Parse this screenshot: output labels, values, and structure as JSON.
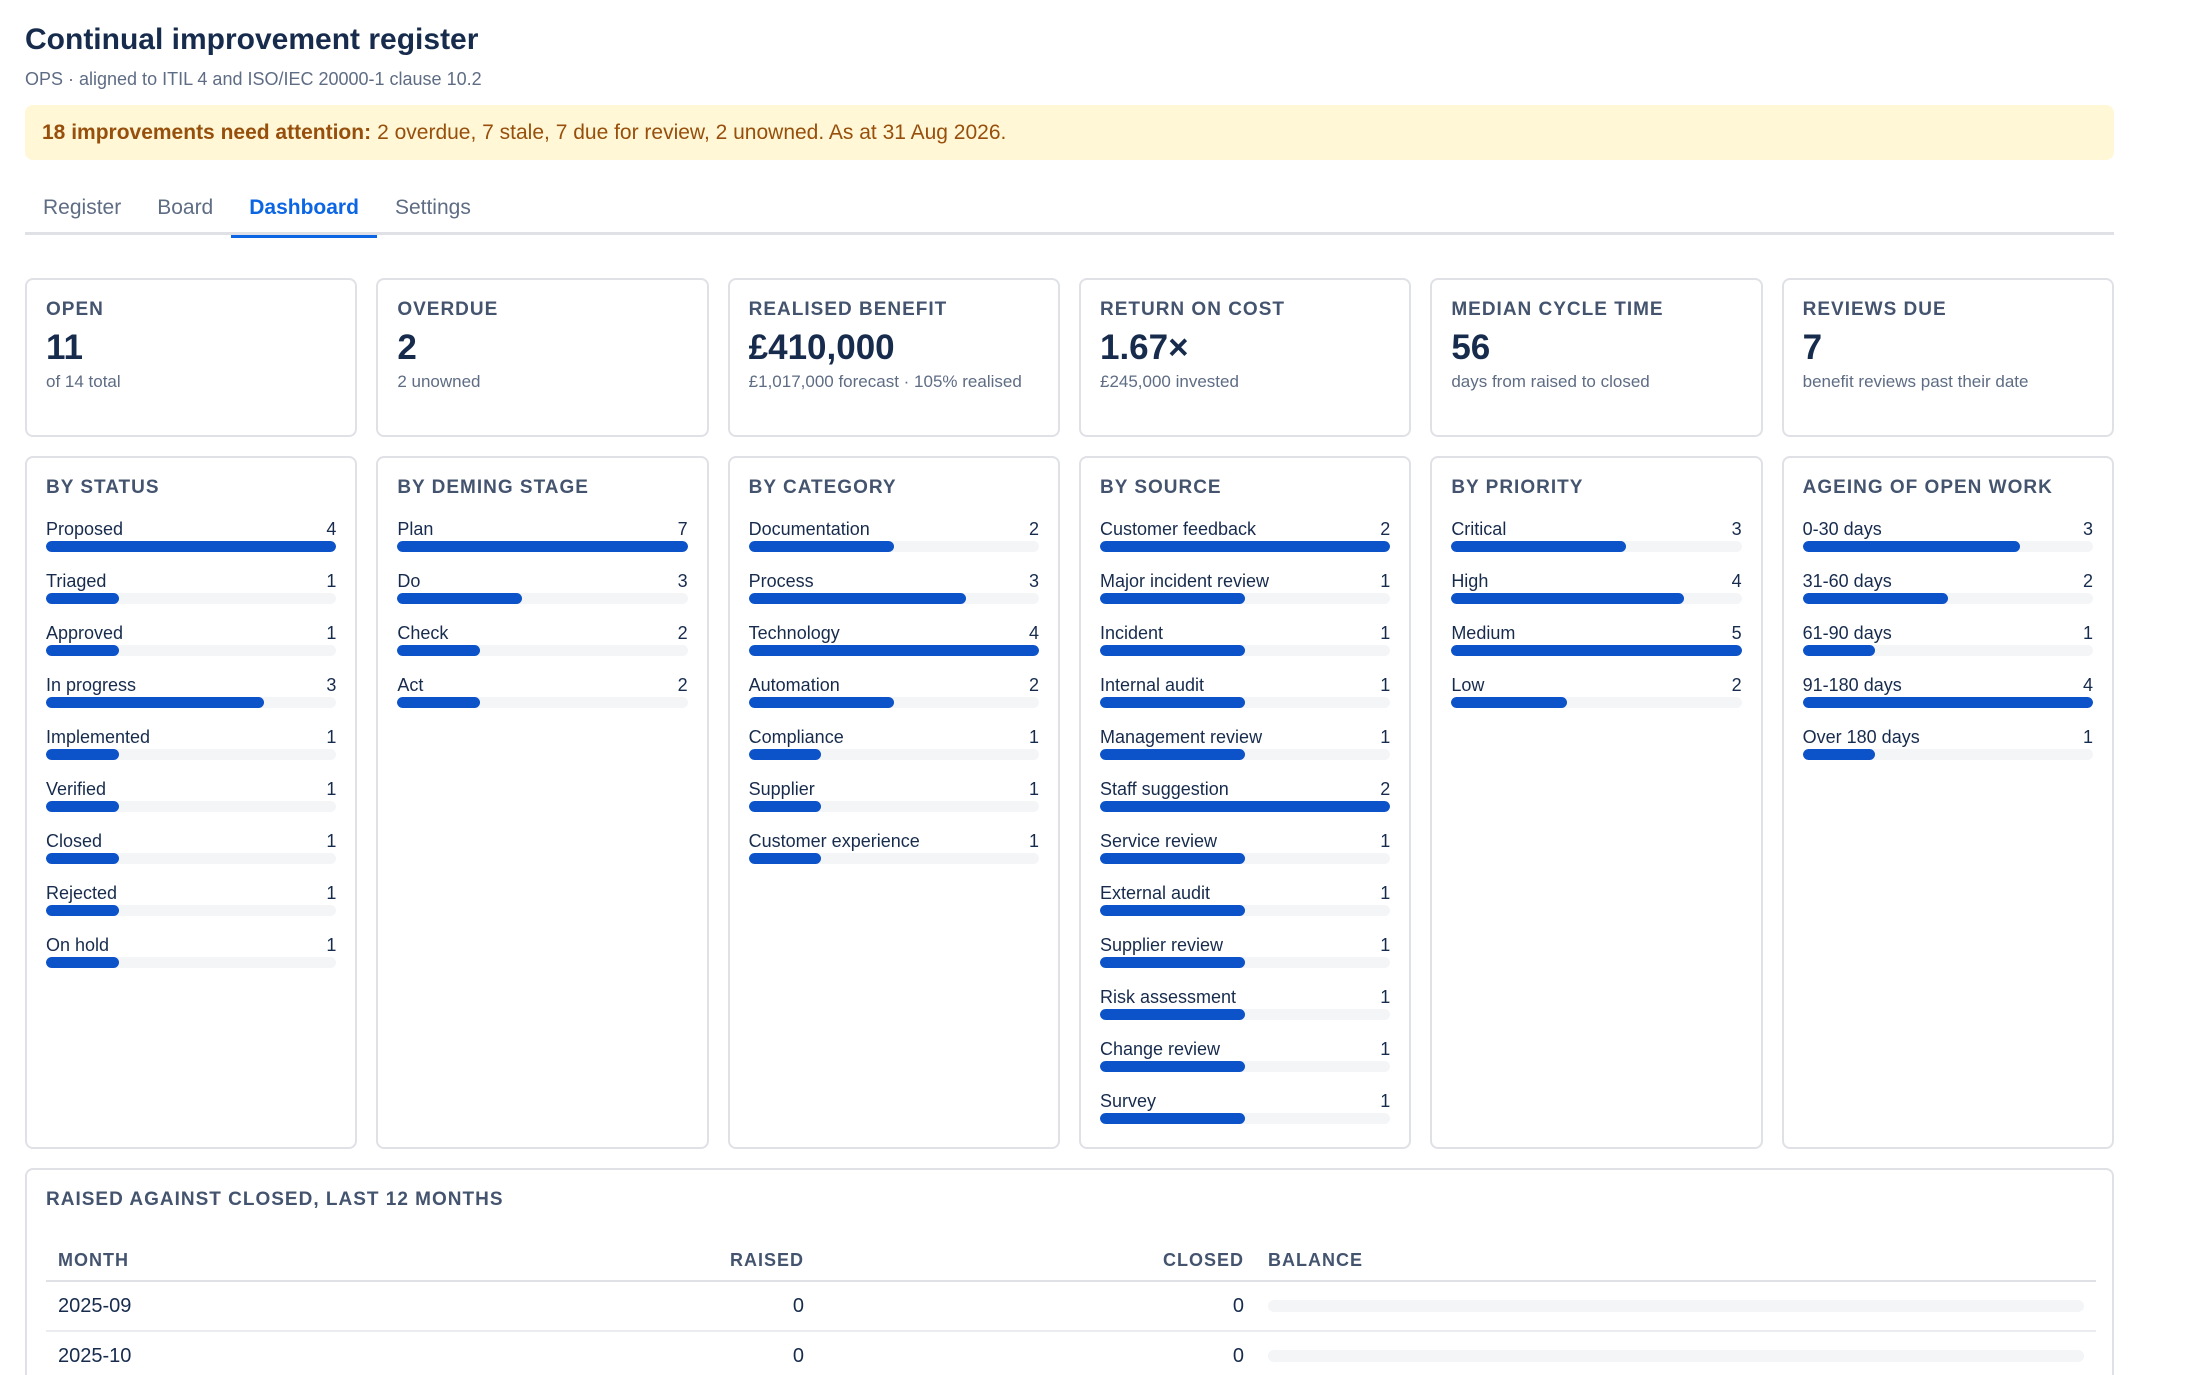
{
  "header": {
    "title": "Continual improvement register",
    "subtitle": "OPS · aligned to ITIL 4 and ISO/IEC 20000-1 clause 10.2"
  },
  "alert": {
    "strong": "18 improvements need attention:",
    "text": "2 overdue, 7 stale, 7 due for review, 2 unowned. As at 31 Aug 2026."
  },
  "tabs": [
    {
      "label": "Register",
      "active": false
    },
    {
      "label": "Board",
      "active": false
    },
    {
      "label": "Dashboard",
      "active": true
    },
    {
      "label": "Settings",
      "active": false
    }
  ],
  "kpis": [
    {
      "label": "OPEN",
      "value": "11",
      "sub": "of 14 total"
    },
    {
      "label": "OVERDUE",
      "value": "2",
      "sub": "2 unowned"
    },
    {
      "label": "REALISED BENEFIT",
      "value": "£410,000",
      "sub": "£1,017,000 forecast · 105% realised"
    },
    {
      "label": "RETURN ON COST",
      "value": "1.67×",
      "sub": "£245,000 invested"
    },
    {
      "label": "MEDIAN CYCLE TIME",
      "value": "56",
      "sub": "days from raised to closed"
    },
    {
      "label": "REVIEWS DUE",
      "value": "7",
      "sub": "benefit reviews past their date"
    }
  ],
  "panels": [
    {
      "title": "BY STATUS",
      "max": 4,
      "items": [
        {
          "label": "Proposed",
          "value": 4
        },
        {
          "label": "Triaged",
          "value": 1
        },
        {
          "label": "Approved",
          "value": 1
        },
        {
          "label": "In progress",
          "value": 3
        },
        {
          "label": "Implemented",
          "value": 1
        },
        {
          "label": "Verified",
          "value": 1
        },
        {
          "label": "Closed",
          "value": 1
        },
        {
          "label": "Rejected",
          "value": 1
        },
        {
          "label": "On hold",
          "value": 1
        }
      ]
    },
    {
      "title": "BY DEMING STAGE",
      "max": 7,
      "items": [
        {
          "label": "Plan",
          "value": 7
        },
        {
          "label": "Do",
          "value": 3
        },
        {
          "label": "Check",
          "value": 2
        },
        {
          "label": "Act",
          "value": 2
        }
      ]
    },
    {
      "title": "BY CATEGORY",
      "max": 4,
      "items": [
        {
          "label": "Documentation",
          "value": 2
        },
        {
          "label": "Process",
          "value": 3
        },
        {
          "label": "Technology",
          "value": 4
        },
        {
          "label": "Automation",
          "value": 2
        },
        {
          "label": "Compliance",
          "value": 1
        },
        {
          "label": "Supplier",
          "value": 1
        },
        {
          "label": "Customer experience",
          "value": 1
        }
      ]
    },
    {
      "title": "BY SOURCE",
      "max": 2,
      "items": [
        {
          "label": "Customer feedback",
          "value": 2
        },
        {
          "label": "Major incident review",
          "value": 1
        },
        {
          "label": "Incident",
          "value": 1
        },
        {
          "label": "Internal audit",
          "value": 1
        },
        {
          "label": "Management review",
          "value": 1
        },
        {
          "label": "Staff suggestion",
          "value": 2
        },
        {
          "label": "Service review",
          "value": 1
        },
        {
          "label": "External audit",
          "value": 1
        },
        {
          "label": "Supplier review",
          "value": 1
        },
        {
          "label": "Risk assessment",
          "value": 1
        },
        {
          "label": "Change review",
          "value": 1
        },
        {
          "label": "Survey",
          "value": 1
        }
      ]
    },
    {
      "title": "BY PRIORITY",
      "max": 5,
      "items": [
        {
          "label": "Critical",
          "value": 3
        },
        {
          "label": "High",
          "value": 4
        },
        {
          "label": "Medium",
          "value": 5
        },
        {
          "label": "Low",
          "value": 2
        }
      ]
    },
    {
      "title": "AGEING OF OPEN WORK",
      "max": 4,
      "items": [
        {
          "label": "0-30 days",
          "value": 3
        },
        {
          "label": "31-60 days",
          "value": 2
        },
        {
          "label": "61-90 days",
          "value": 1
        },
        {
          "label": "91-180 days",
          "value": 4
        },
        {
          "label": "Over 180 days",
          "value": 1
        }
      ]
    }
  ],
  "table": {
    "title": "RAISED AGAINST CLOSED, LAST 12 MONTHS",
    "columns": [
      "MONTH",
      "RAISED",
      "CLOSED",
      "BALANCE"
    ],
    "rows": [
      {
        "month": "2025-09",
        "raised": "0",
        "closed": "0"
      },
      {
        "month": "2025-10",
        "raised": "0",
        "closed": "0"
      }
    ]
  },
  "colors": {
    "accent": "#0c66e4",
    "bar": "#0c52c9",
    "alert_bg": "#fff7d6",
    "alert_text": "#974f0c"
  }
}
